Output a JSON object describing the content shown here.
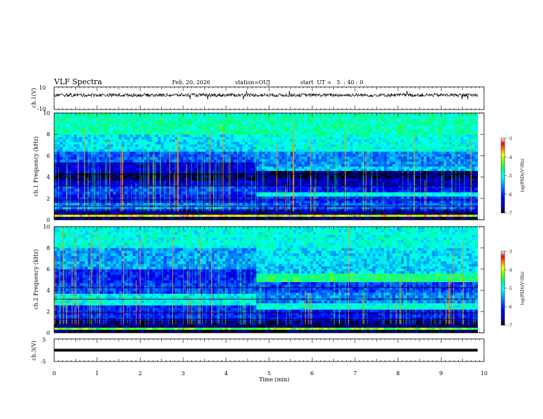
{
  "header": {
    "title": "VLF Spectra",
    "date": "Feb. 20, 2026",
    "station": "station=OUJ",
    "start": "start  UT =   5  : 40 : 0"
  },
  "chart_data": [
    {
      "type": "line",
      "panel": "ch1-waveform",
      "ylabel": "ch.1(V)",
      "ylim": [
        -10,
        10
      ],
      "ytick_labels": [
        "10",
        "-10"
      ],
      "trace_center": 2.8,
      "trace_amplitude": 1.5
    },
    {
      "type": "heatmap",
      "panel": "ch1-spectrogram",
      "ylabel": "ch.1\nFrequency (kHz)",
      "ylim": [
        0,
        10
      ],
      "xlim": [
        0,
        9.85
      ],
      "ytick_labels": [
        "0",
        "2",
        "4",
        "6",
        "8",
        "10"
      ],
      "colorbar": {
        "label": "log(PSD)(V²/Hz)",
        "range": [
          -7,
          -3
        ],
        "tick_labels": [
          "-3",
          "-4",
          "-5",
          "-6",
          "-7"
        ]
      },
      "segments": [
        {
          "time_range": [
            0,
            4.7
          ],
          "bands": [
            {
              "f": [
                0,
                0.3
              ],
              "level": -6.8
            },
            {
              "f": [
                0.3,
                0.5
              ],
              "level": -3.9
            },
            {
              "f": [
                0.5,
                1.0
              ],
              "level": -6.6
            },
            {
              "f": [
                1.0,
                1.6
              ],
              "level": -5.6
            },
            {
              "f": [
                1.6,
                2.4
              ],
              "level": -6.2
            },
            {
              "f": [
                2.4,
                3.2
              ],
              "level": -5.9
            },
            {
              "f": [
                3.2,
                3.7
              ],
              "level": -6.4
            },
            {
              "f": [
                3.7,
                4.4
              ],
              "level": -6.8
            },
            {
              "f": [
                4.4,
                5.4
              ],
              "level": -6.4
            },
            {
              "f": [
                5.4,
                6.4
              ],
              "level": -5.8
            },
            {
              "f": [
                6.4,
                8.0
              ],
              "level": -5.2
            },
            {
              "f": [
                8.0,
                10.0
              ],
              "level": -4.8
            }
          ]
        },
        {
          "time_range": [
            4.7,
            9.85
          ],
          "bands": [
            {
              "f": [
                0,
                0.3
              ],
              "level": -6.8
            },
            {
              "f": [
                0.3,
                0.5
              ],
              "level": -3.9
            },
            {
              "f": [
                0.5,
                1.0
              ],
              "level": -6.6
            },
            {
              "f": [
                1.0,
                1.6
              ],
              "level": -5.8
            },
            {
              "f": [
                1.6,
                2.2
              ],
              "level": -6.0
            },
            {
              "f": [
                2.2,
                2.6
              ],
              "level": -5.0
            },
            {
              "f": [
                2.6,
                3.2
              ],
              "level": -6.2
            },
            {
              "f": [
                3.2,
                3.9
              ],
              "level": -6.5
            },
            {
              "f": [
                3.9,
                4.6
              ],
              "level": -6.8
            },
            {
              "f": [
                4.6,
                5.0
              ],
              "level": -5.3
            },
            {
              "f": [
                5.0,
                6.4
              ],
              "level": -5.6
            },
            {
              "f": [
                6.4,
                8.0
              ],
              "level": -5.0
            },
            {
              "f": [
                8.0,
                10.0
              ],
              "level": -4.8
            }
          ]
        }
      ]
    },
    {
      "type": "heatmap",
      "panel": "ch2-spectrogram",
      "ylabel": "ch.2\nFrequency (kHz)",
      "ylim": [
        0,
        10
      ],
      "xlim": [
        0,
        9.85
      ],
      "ytick_labels": [
        "0",
        "2",
        "4",
        "6",
        "8",
        "10"
      ],
      "colorbar": {
        "label": "log(PSD)(V²/Hz)",
        "range": [
          -7,
          -3
        ],
        "tick_labels": [
          "-3",
          "-4",
          "-5",
          "-6",
          "-7"
        ]
      },
      "segments": [
        {
          "time_range": [
            0,
            4.7
          ],
          "bands": [
            {
              "f": [
                0,
                0.3
              ],
              "level": -6.8
            },
            {
              "f": [
                0.3,
                0.5
              ],
              "level": -4.3
            },
            {
              "f": [
                0.5,
                1.2
              ],
              "level": -6.7
            },
            {
              "f": [
                1.2,
                2.6
              ],
              "level": -6.1
            },
            {
              "f": [
                2.6,
                3.7
              ],
              "level": -5.1
            },
            {
              "f": [
                3.7,
                4.7
              ],
              "level": -5.9
            },
            {
              "f": [
                4.7,
                6.0
              ],
              "level": -6.1
            },
            {
              "f": [
                6.0,
                8.0
              ],
              "level": -5.5
            },
            {
              "f": [
                8.0,
                10.0
              ],
              "level": -5.0
            }
          ]
        },
        {
          "time_range": [
            4.7,
            9.85
          ],
          "bands": [
            {
              "f": [
                0,
                0.3
              ],
              "level": -6.8
            },
            {
              "f": [
                0.3,
                0.5
              ],
              "level": -4.3
            },
            {
              "f": [
                0.5,
                1.2
              ],
              "level": -6.7
            },
            {
              "f": [
                1.2,
                2.2
              ],
              "level": -6.2
            },
            {
              "f": [
                2.2,
                2.8
              ],
              "level": -5.0
            },
            {
              "f": [
                2.8,
                3.8
              ],
              "level": -5.6
            },
            {
              "f": [
                3.8,
                4.8
              ],
              "level": -5.9
            },
            {
              "f": [
                4.8,
                5.6
              ],
              "level": -4.6
            },
            {
              "f": [
                5.6,
                6.5
              ],
              "level": -5.3
            },
            {
              "f": [
                6.5,
                8.0
              ],
              "level": -5.2
            },
            {
              "f": [
                8.0,
                10.0
              ],
              "level": -5.0
            }
          ]
        }
      ]
    },
    {
      "type": "line",
      "panel": "ch3-waveform",
      "ylabel": "ch.3(V)",
      "ylim": [
        -5,
        5
      ],
      "ytick_labels": [
        "5",
        "-5"
      ],
      "trace_level": 0
    }
  ],
  "x_axis": {
    "label": "Time (min)",
    "range": [
      0,
      10
    ],
    "tick_labels": [
      "0",
      "1",
      "2",
      "3",
      "4",
      "5",
      "6",
      "7",
      "8",
      "9",
      "10"
    ]
  },
  "colors": {
    "colormap": [
      "#000080",
      "#0000ff",
      "#0080ff",
      "#00ffff",
      "#00ff80",
      "#80ff00",
      "#ffff00",
      "#ff8000",
      "#ff0000",
      "#ffffff"
    ]
  }
}
